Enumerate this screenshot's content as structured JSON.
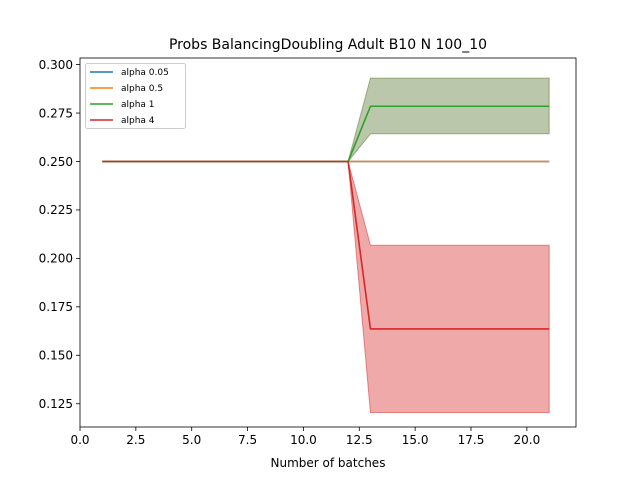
{
  "chart_data": {
    "type": "line",
    "title": "Probs BalancingDoubling Adult B10 N 100_10",
    "xlabel": "Number of batches",
    "ylabel": "",
    "xlim": [
      0.0,
      22.2
    ],
    "ylim": [
      0.113,
      0.3034
    ],
    "xticks": [
      0.0,
      2.5,
      5.0,
      7.5,
      10.0,
      12.5,
      15.0,
      17.5,
      20.0
    ],
    "xtick_labels": [
      "0.0",
      "2.5",
      "5.0",
      "7.5",
      "10.0",
      "12.5",
      "15.0",
      "17.5",
      "20.0"
    ],
    "yticks": [
      0.125,
      0.15,
      0.175,
      0.2,
      0.225,
      0.25,
      0.275,
      0.3
    ],
    "ytick_labels": [
      "0.125",
      "0.150",
      "0.175",
      "0.200",
      "0.225",
      "0.250",
      "0.275",
      "0.300"
    ],
    "grid": false,
    "legend_position": "top-left",
    "x": [
      1,
      12,
      13,
      21
    ],
    "series": [
      {
        "name": "alpha 0.05",
        "color": "#1f77b4",
        "values": [
          0.25,
          0.25,
          0.25,
          0.25
        ],
        "band_lower": null,
        "band_upper": null
      },
      {
        "name": "alpha 0.5",
        "color": "#ff7f0e",
        "values": [
          0.25,
          0.25,
          0.25,
          0.25
        ],
        "band_lower": null,
        "band_upper": null
      },
      {
        "name": "alpha 1",
        "color": "#2ca02c",
        "values": [
          0.25,
          0.25,
          0.2785,
          0.2785
        ],
        "band_lower": [
          0.25,
          0.25,
          0.2643,
          0.2643
        ],
        "band_upper": [
          0.25,
          0.25,
          0.293,
          0.293
        ],
        "band_color": "#56732b"
      },
      {
        "name": "alpha 4",
        "color": "#d62728",
        "values": [
          0.25,
          0.25,
          0.1636,
          0.1636
        ],
        "band_lower": [
          0.25,
          0.25,
          0.1205,
          0.1205
        ],
        "band_upper": [
          0.25,
          0.25,
          0.2068,
          0.2068
        ],
        "band_color": "#d62728"
      }
    ]
  }
}
